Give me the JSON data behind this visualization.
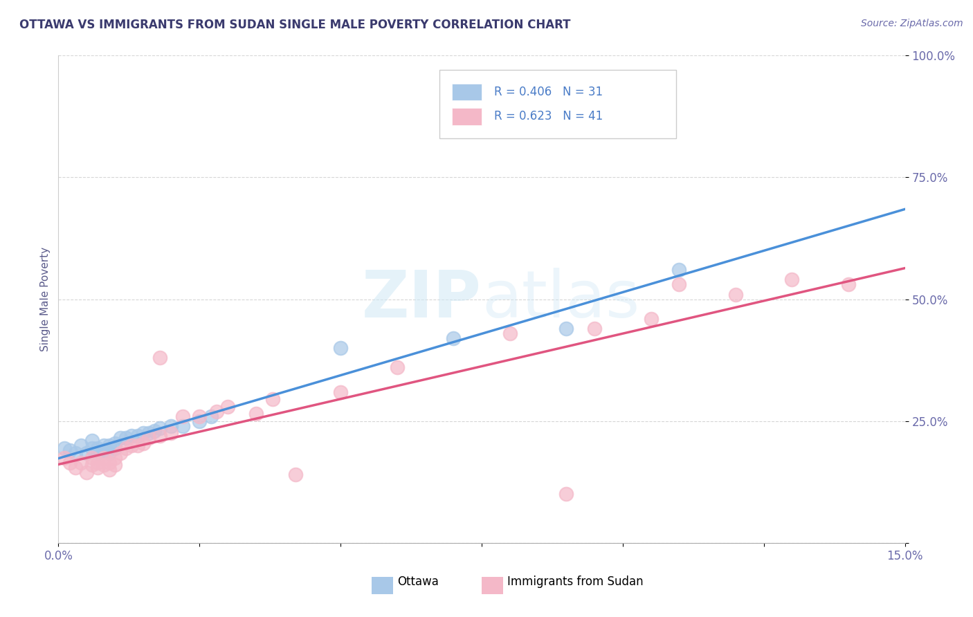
{
  "title": "OTTAWA VS IMMIGRANTS FROM SUDAN SINGLE MALE POVERTY CORRELATION CHART",
  "source": "Source: ZipAtlas.com",
  "xlabel_min": 0.0,
  "xlabel_max": 0.15,
  "ylabel_min": 0.0,
  "ylabel_max": 1.0,
  "yticks": [
    0.0,
    0.25,
    0.5,
    0.75,
    1.0
  ],
  "ytick_labels": [
    "",
    "25.0%",
    "50.0%",
    "75.0%",
    "100.0%"
  ],
  "xticks": [
    0.0,
    0.025,
    0.05,
    0.075,
    0.1,
    0.125,
    0.15
  ],
  "xtick_labels": [
    "0.0%",
    "",
    "",
    "",
    "",
    "",
    "15.0%"
  ],
  "ottawa_color": "#a8c8e8",
  "sudan_color": "#f4b8c8",
  "ottawa_line_color": "#4a90d9",
  "sudan_line_color": "#e05580",
  "legend_r_ottawa": "R = 0.406",
  "legend_n_ottawa": "N = 31",
  "legend_r_sudan": "R = 0.623",
  "legend_n_sudan": "N = 41",
  "ottawa_label": "Ottawa",
  "sudan_label": "Immigrants from Sudan",
  "ylabel": "Single Male Poverty",
  "watermark_zip": "ZIP",
  "watermark_atlas": "atlas",
  "background_color": "#ffffff",
  "grid_color": "#cccccc",
  "title_color": "#3a3a6e",
  "axis_label_color": "#5a5a8a",
  "tick_color": "#6a6aaa",
  "legend_text_color": "#4a7cc7",
  "ottawa_x": [
    0.001,
    0.002,
    0.003,
    0.004,
    0.005,
    0.006,
    0.006,
    0.007,
    0.007,
    0.008,
    0.008,
    0.009,
    0.009,
    0.01,
    0.01,
    0.011,
    0.012,
    0.013,
    0.014,
    0.015,
    0.016,
    0.017,
    0.018,
    0.02,
    0.022,
    0.025,
    0.027,
    0.05,
    0.07,
    0.09,
    0.11
  ],
  "ottawa_y": [
    0.195,
    0.19,
    0.185,
    0.2,
    0.185,
    0.21,
    0.195,
    0.195,
    0.185,
    0.2,
    0.19,
    0.2,
    0.185,
    0.205,
    0.195,
    0.215,
    0.215,
    0.22,
    0.22,
    0.225,
    0.225,
    0.23,
    0.235,
    0.24,
    0.24,
    0.25,
    0.26,
    0.4,
    0.42,
    0.44,
    0.56
  ],
  "sudan_x": [
    0.001,
    0.002,
    0.003,
    0.004,
    0.005,
    0.006,
    0.006,
    0.007,
    0.007,
    0.008,
    0.008,
    0.009,
    0.009,
    0.01,
    0.01,
    0.011,
    0.012,
    0.013,
    0.014,
    0.015,
    0.016,
    0.018,
    0.018,
    0.02,
    0.022,
    0.025,
    0.028,
    0.03,
    0.035,
    0.038,
    0.042,
    0.05,
    0.06,
    0.08,
    0.09,
    0.095,
    0.105,
    0.11,
    0.12,
    0.13,
    0.14
  ],
  "sudan_y": [
    0.175,
    0.165,
    0.155,
    0.165,
    0.145,
    0.175,
    0.16,
    0.155,
    0.165,
    0.175,
    0.16,
    0.165,
    0.15,
    0.175,
    0.16,
    0.185,
    0.195,
    0.2,
    0.2,
    0.205,
    0.215,
    0.22,
    0.38,
    0.225,
    0.26,
    0.26,
    0.27,
    0.28,
    0.265,
    0.295,
    0.14,
    0.31,
    0.36,
    0.43,
    0.1,
    0.44,
    0.46,
    0.53,
    0.51,
    0.54,
    0.53
  ]
}
